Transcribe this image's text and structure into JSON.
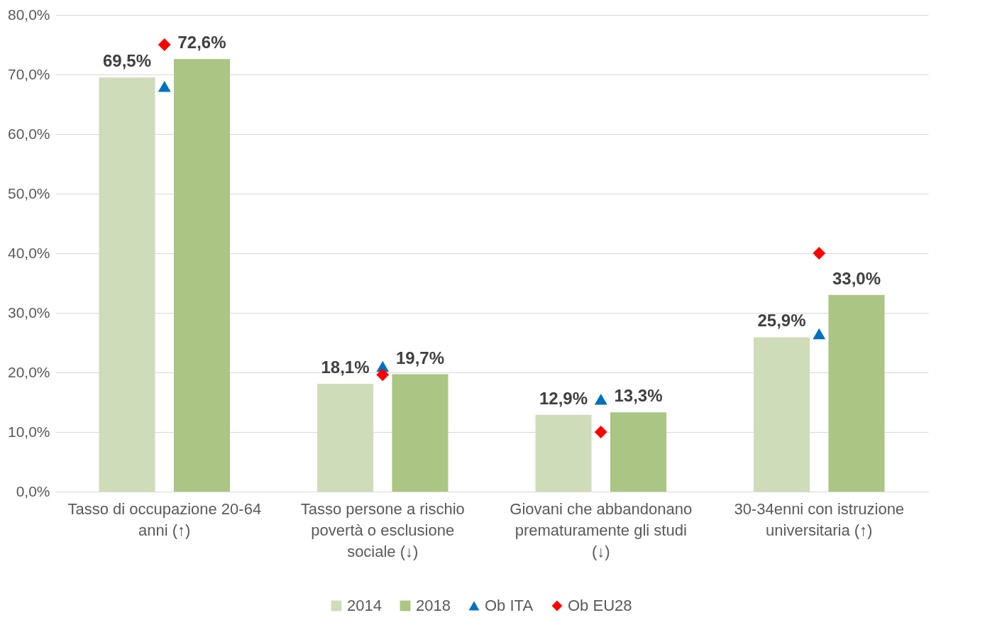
{
  "chart_data": {
    "type": "bar",
    "categories": [
      "Tasso di occupazione 20-64 anni (↑)",
      "Tasso persone a rischio povertà o esclusione sociale (↓)",
      "Giovani che abbandonano prematuramente gli studi (↓)",
      "30-34enni con istruzione universitaria (↑)"
    ],
    "series": [
      {
        "name": "2014",
        "type": "bar",
        "color": "#cfdcb9",
        "values": [
          69.5,
          18.1,
          12.9,
          25.9
        ],
        "value_labels": [
          "69,5%",
          "18,1%",
          "12,9%",
          "25,9%"
        ]
      },
      {
        "name": "2018",
        "type": "bar",
        "color": "#aac584",
        "values": [
          72.6,
          19.7,
          13.3,
          33.0
        ],
        "value_labels": [
          "72,6%",
          "19,7%",
          "13,3%",
          "33,0%"
        ]
      },
      {
        "name": "Ob ITA",
        "type": "scatter",
        "marker": "triangle",
        "color": "#0070c0",
        "values": [
          68,
          21,
          15.5,
          26.5
        ]
      },
      {
        "name": "Ob EU28",
        "type": "scatter",
        "marker": "diamond",
        "color": "#ff0000",
        "values": [
          75,
          19.6,
          10,
          40
        ]
      }
    ],
    "ylim": [
      0,
      80
    ],
    "yticks": [
      {
        "value": 0,
        "label": "0,0%"
      },
      {
        "value": 10,
        "label": "10,0%"
      },
      {
        "value": 20,
        "label": "20,0%"
      },
      {
        "value": 30,
        "label": "30,0%"
      },
      {
        "value": 40,
        "label": "40,0%"
      },
      {
        "value": 50,
        "label": "50,0%"
      },
      {
        "value": 60,
        "label": "60,0%"
      },
      {
        "value": 70,
        "label": "70,0%"
      },
      {
        "value": 80,
        "label": "80,0%"
      }
    ],
    "grid": "y",
    "legend": "bottom"
  }
}
